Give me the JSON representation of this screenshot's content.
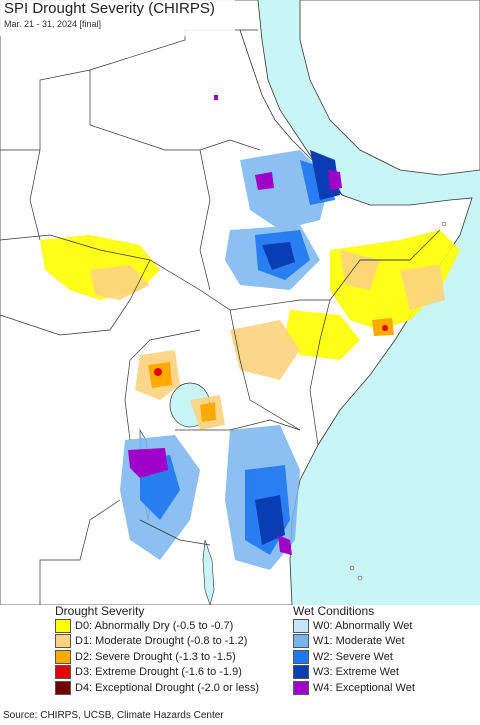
{
  "header": {
    "title": "SPI Drought Severity (CHIRPS)",
    "subtitle": "Mar. 21 - 31, 2024 [final]"
  },
  "legend": {
    "drought_title": "Drought Severity",
    "drought": [
      {
        "label": "D0: Abnormally Dry (-0.5 to -0.7)",
        "color": "#ffff00"
      },
      {
        "label": "D1: Moderate Drought (-0.8 to -1.2)",
        "color": "#fcd37f"
      },
      {
        "label": "D2: Severe Drought (-1.3 to -1.5)",
        "color": "#ffaa00"
      },
      {
        "label": "D3: Extreme Drought (-1.6 to -1.9)",
        "color": "#e60000"
      },
      {
        "label": "D4: Exceptional Drought (-2.0 or less)",
        "color": "#730000"
      }
    ],
    "wet_title": "Wet Conditions",
    "wet": [
      {
        "label": "W0: Abnormally Wet",
        "color": "#c8e6fa"
      },
      {
        "label": "W1: Moderate Wet",
        "color": "#78b4f0"
      },
      {
        "label": "W2: Severe Wet",
        "color": "#1e78f0"
      },
      {
        "label": "W3: Extreme Wet",
        "color": "#0a3cb4"
      },
      {
        "label": "W4: Exceptional Wet",
        "color": "#a000c8"
      }
    ]
  },
  "footer": {
    "source": "Source: CHIRPS, UCSB, Climate Hazards Center"
  },
  "colors": {
    "water": "#c9f5f7",
    "land_outside": "#ffffff",
    "border": "#333333"
  }
}
